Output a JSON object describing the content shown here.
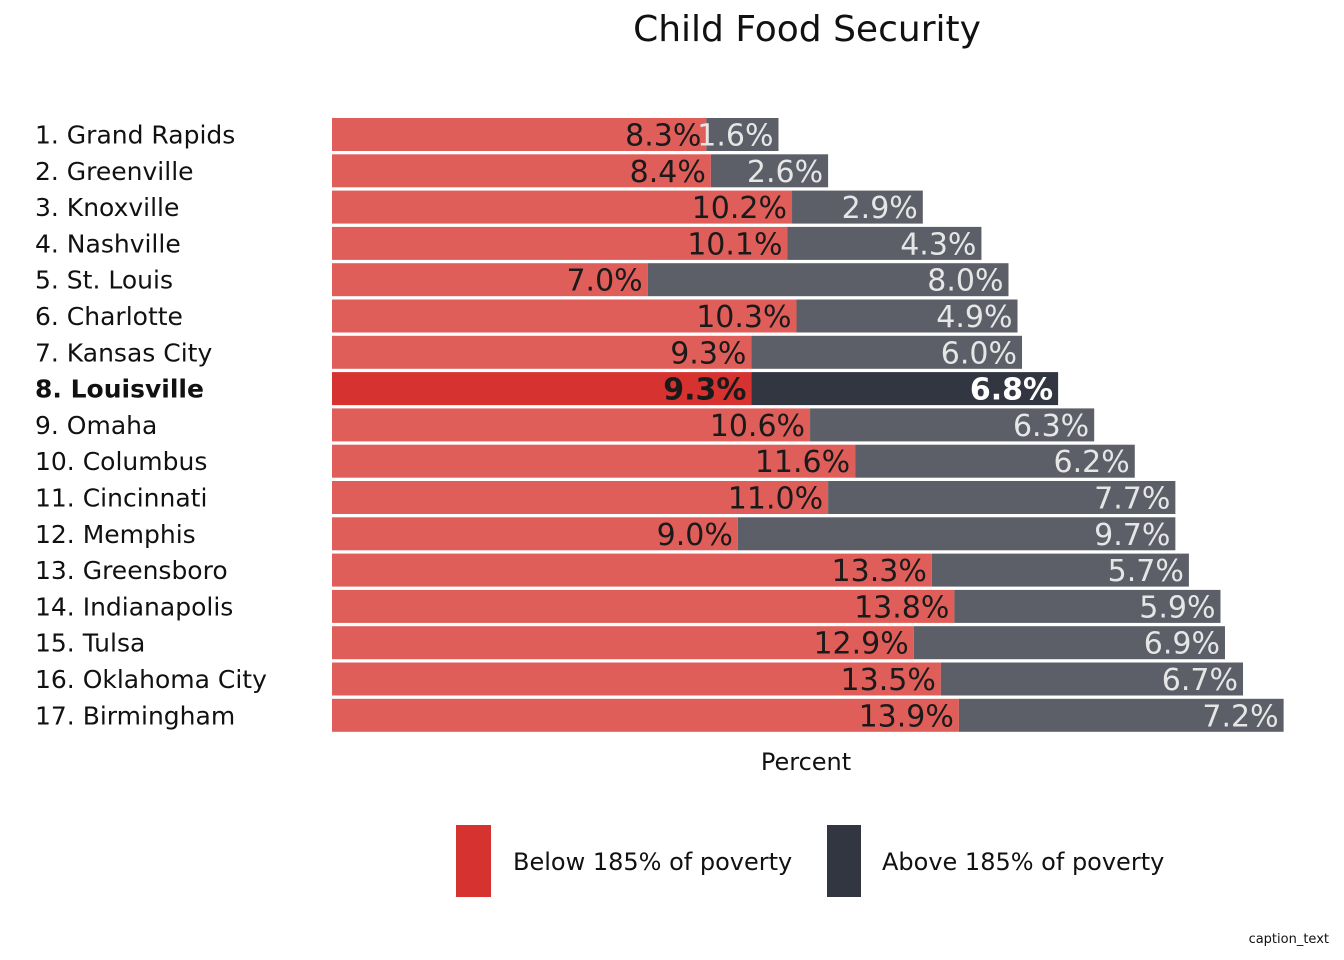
{
  "chart_data": {
    "type": "bar",
    "stacked": true,
    "orientation": "horizontal",
    "title": "Child Food Security",
    "xlabel": "Percent",
    "ylabel": "",
    "caption": "caption_text",
    "grid": false,
    "legend_position": "bottom",
    "highlight": "8. Louisville",
    "categories": [
      "1. Grand Rapids",
      "2. Greenville",
      "3. Knoxville",
      "4. Nashville",
      "5. St. Louis",
      "6. Charlotte",
      "7. Kansas City",
      "8. Louisville",
      "9. Omaha",
      "10. Columbus",
      "11. Cincinnati",
      "12. Memphis",
      "13. Greensboro",
      "14. Indianapolis",
      "15. Tulsa",
      "16. Oklahoma City",
      "17. Birmingham"
    ],
    "series": [
      {
        "name": "Below 185% of poverty",
        "values": [
          8.3,
          8.4,
          10.2,
          10.1,
          7.0,
          10.3,
          9.3,
          9.3,
          10.6,
          11.6,
          11.0,
          9.0,
          13.3,
          13.8,
          12.9,
          13.5,
          13.9
        ],
        "color": "#e05e5a",
        "highlight_color": "#d63230",
        "label_color": "#1a1a1a"
      },
      {
        "name": "Above 185% of poverty",
        "values": [
          1.6,
          2.6,
          2.9,
          4.3,
          8.0,
          4.9,
          6.0,
          6.8,
          6.3,
          6.2,
          7.7,
          9.7,
          5.7,
          5.9,
          6.9,
          6.7,
          7.2
        ],
        "color": "#5c5f67",
        "highlight_color": "#323641",
        "label_color": "#e6e6e6",
        "highlight_label_color": "#ffffff"
      }
    ],
    "legend_colors": [
      "#d63230",
      "#323641"
    ]
  }
}
